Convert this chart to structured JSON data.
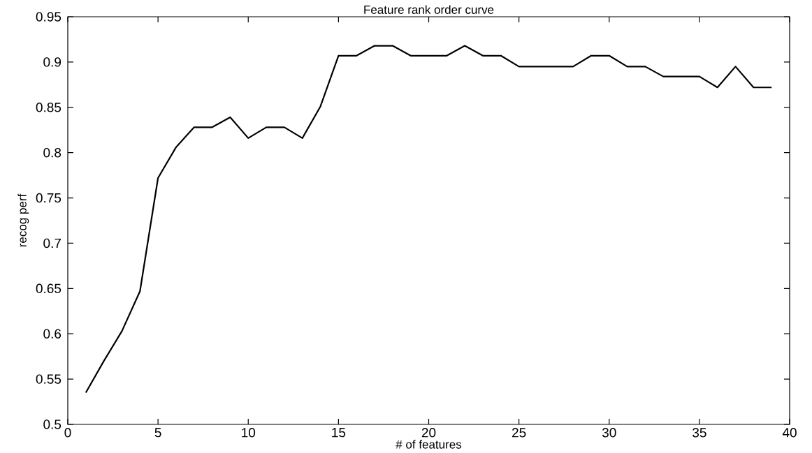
{
  "chart_data": {
    "type": "line",
    "title": "Feature rank order curve",
    "xlabel": "# of features",
    "ylabel": "recog perf",
    "x": [
      1,
      2,
      3,
      4,
      5,
      6,
      7,
      8,
      9,
      10,
      11,
      12,
      13,
      14,
      15,
      16,
      17,
      18,
      19,
      20,
      21,
      22,
      23,
      24,
      25,
      26,
      27,
      28,
      29,
      30,
      31,
      32,
      33,
      34,
      35,
      36,
      37,
      38,
      39
    ],
    "series": [
      {
        "color": "#000000",
        "values": [
          0.535,
          0.57,
          0.603,
          0.647,
          0.772,
          0.806,
          0.828,
          0.828,
          0.839,
          0.816,
          0.828,
          0.828,
          0.816,
          0.851,
          0.907,
          0.907,
          0.918,
          0.918,
          0.907,
          0.907,
          0.907,
          0.918,
          0.907,
          0.907,
          0.895,
          0.895,
          0.895,
          0.895,
          0.907,
          0.907,
          0.895,
          0.895,
          0.884,
          0.884,
          0.884,
          0.872,
          0.895,
          0.872,
          0.872
        ]
      }
    ],
    "xlim": [
      0,
      40
    ],
    "xticks": [
      0,
      5,
      10,
      15,
      20,
      25,
      30,
      35,
      40
    ],
    "ylim": [
      0.5,
      0.95
    ],
    "yticks": [
      {
        "value": 0.5,
        "label": "0.5"
      },
      {
        "value": 0.55,
        "label": "0.55"
      },
      {
        "value": 0.6,
        "label": "0.6"
      },
      {
        "value": 0.65,
        "label": "0.65"
      },
      {
        "value": 0.7,
        "label": "0.7"
      },
      {
        "value": 0.75,
        "label": "0.75"
      },
      {
        "value": 0.8,
        "label": "0.8"
      },
      {
        "value": 0.85,
        "label": "0.85"
      },
      {
        "value": 0.9,
        "label": "0.9"
      },
      {
        "value": 0.95,
        "label": "0.95"
      }
    ],
    "grid": false,
    "marker": "none",
    "line_style": "solid"
  }
}
